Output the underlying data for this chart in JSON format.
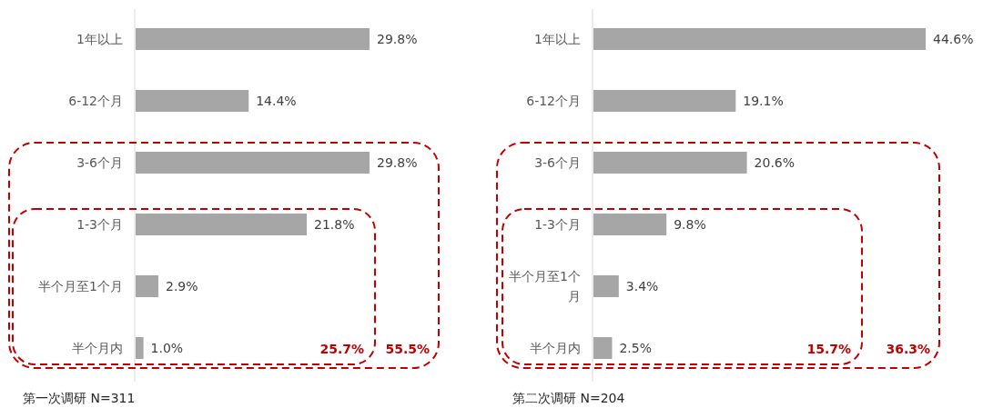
{
  "chart_data": [
    {
      "type": "bar",
      "orientation": "horizontal",
      "color": "#a6a6a6",
      "categories": [
        "1年以上",
        "6-12个月",
        "3-6个月",
        "1-3个月",
        "半个月至1个月",
        "半个月内"
      ],
      "values": [
        29.8,
        14.4,
        29.8,
        21.8,
        2.9,
        1.0
      ],
      "value_labels": [
        "29.8%",
        "14.4%",
        "29.8%",
        "21.8%",
        "2.9%",
        "1.0%"
      ],
      "annotations": [
        "25.7%",
        "55.5%",
        "第一次调研  N=311"
      ]
    },
    {
      "type": "bar",
      "orientation": "horizontal",
      "color": "#a6a6a6",
      "categories": [
        "1年以上",
        "6-12个月",
        "3-6个月",
        "1-3个月",
        "半个月至1个月",
        "半个月内"
      ],
      "values": [
        44.6,
        19.1,
        20.6,
        9.8,
        3.4,
        2.5
      ],
      "value_labels": [
        "44.6%",
        "19.1%",
        "20.6%",
        "9.8%",
        "3.4%",
        "2.5%"
      ],
      "annotations": [
        "15.7%",
        "36.3%",
        "第二次调研  N=204"
      ]
    }
  ]
}
